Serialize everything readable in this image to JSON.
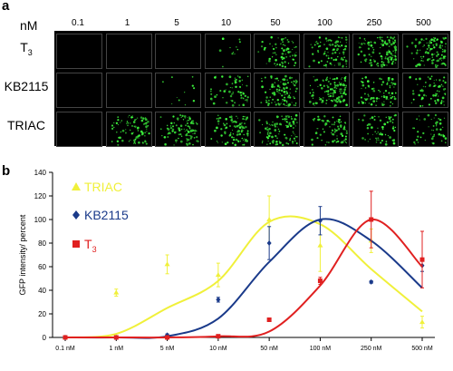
{
  "figure": {
    "panel_a_letter": "a",
    "panel_b_letter": "b"
  },
  "panel_a": {
    "unit": "nM",
    "columns": [
      "0.1",
      "1",
      "5",
      "10",
      "50",
      "100",
      "250",
      "500"
    ],
    "rows": [
      {
        "name": "T",
        "sub": "3",
        "intensity": [
          0,
          0,
          0,
          0.08,
          0.55,
          0.7,
          0.85,
          0.8
        ]
      },
      {
        "name": "KB2115",
        "sub": "",
        "intensity": [
          0,
          0,
          0.08,
          0.45,
          0.8,
          0.85,
          0.6,
          0.5
        ]
      },
      {
        "name": "TRIAC",
        "sub": "",
        "intensity": [
          0,
          0.6,
          0.75,
          0.7,
          0.75,
          0.55,
          0.45,
          0.35
        ]
      }
    ],
    "stain_color": "#2ecc40"
  },
  "chart_data": {
    "type": "line",
    "ylabel": "GFP intensity/ percent",
    "xlabel": "",
    "ylim": [
      0,
      140
    ],
    "yticks": [
      0,
      20,
      40,
      60,
      80,
      100,
      120,
      140
    ],
    "categories": [
      "0.1 nM",
      "1 nM",
      "5 nM",
      "10 nM",
      "50 nM",
      "100 nM",
      "250 nM",
      "500 nM"
    ],
    "grid": false,
    "legend_position": "top-left",
    "series": [
      {
        "name": "TRIAC",
        "color": "#f0f03a",
        "marker": "triangle",
        "values": [
          0,
          38,
          62,
          53,
          100,
          78,
          82,
          13
        ],
        "errors": [
          0,
          3,
          8,
          10,
          20,
          22,
          10,
          5
        ],
        "fit": [
          0,
          3,
          25,
          48,
          98,
          96,
          58,
          22
        ]
      },
      {
        "name": "KB2115",
        "sub": "",
        "color": "#1a3a8a",
        "marker": "diamond",
        "values": [
          0,
          0,
          2,
          32,
          80,
          99,
          47,
          61
        ],
        "errors": [
          0,
          0,
          1,
          2,
          14,
          12,
          1,
          5
        ],
        "fit": [
          0,
          0,
          1,
          16,
          64,
          100,
          82,
          42
        ]
      },
      {
        "name": "T",
        "sub": "3",
        "color": "#e02020",
        "marker": "square",
        "values": [
          0,
          0,
          0,
          1,
          15,
          48,
          100,
          66
        ],
        "errors": [
          0,
          0,
          0,
          0,
          1,
          3,
          24,
          24
        ],
        "fit": [
          0,
          0,
          0,
          1,
          5,
          44,
          100,
          60
        ]
      }
    ]
  }
}
